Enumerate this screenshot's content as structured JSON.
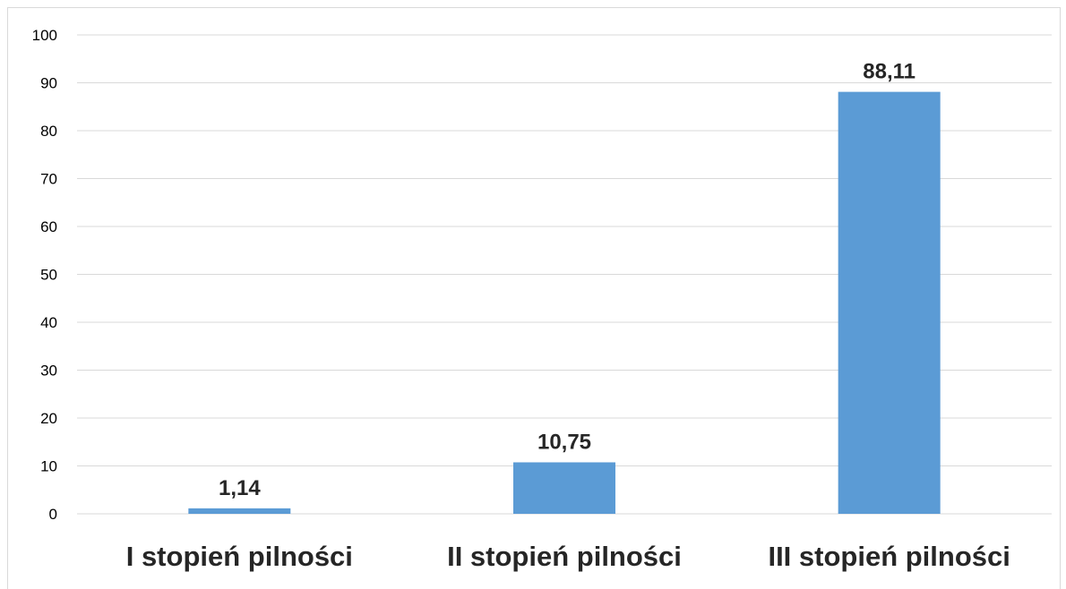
{
  "chart_data": {
    "type": "bar",
    "categories": [
      "I stopień pilności",
      "II stopień pilności",
      "III stopień pilności"
    ],
    "values": [
      1.14,
      10.75,
      88.11
    ],
    "data_labels": [
      "1,14",
      "10,75",
      "88,11"
    ],
    "yticks": [
      0,
      10,
      20,
      30,
      40,
      50,
      60,
      70,
      80,
      90,
      100
    ],
    "ylim": [
      0,
      100
    ],
    "title": "",
    "xlabel": "",
    "ylabel": "",
    "grid": true,
    "legend": "none",
    "bar_color": "#5b9bd5"
  }
}
